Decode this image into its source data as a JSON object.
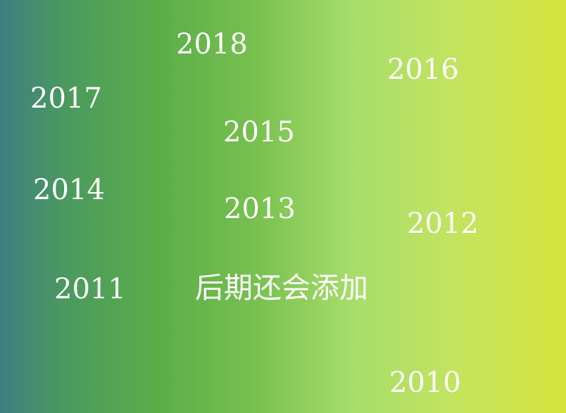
{
  "years": {
    "y2018": "2018",
    "y2016": "2016",
    "y2017": "2017",
    "y2015": "2015",
    "y2014": "2014",
    "y2013": "2013",
    "y2012": "2012",
    "y2011": "2011",
    "y2010": "2010"
  },
  "note": "后期还会添加",
  "colors": {
    "gradient_left": "#3f7f80",
    "gradient_mid": "#5aae48",
    "gradient_right": "#d7e43c",
    "text": "#ffffff"
  }
}
